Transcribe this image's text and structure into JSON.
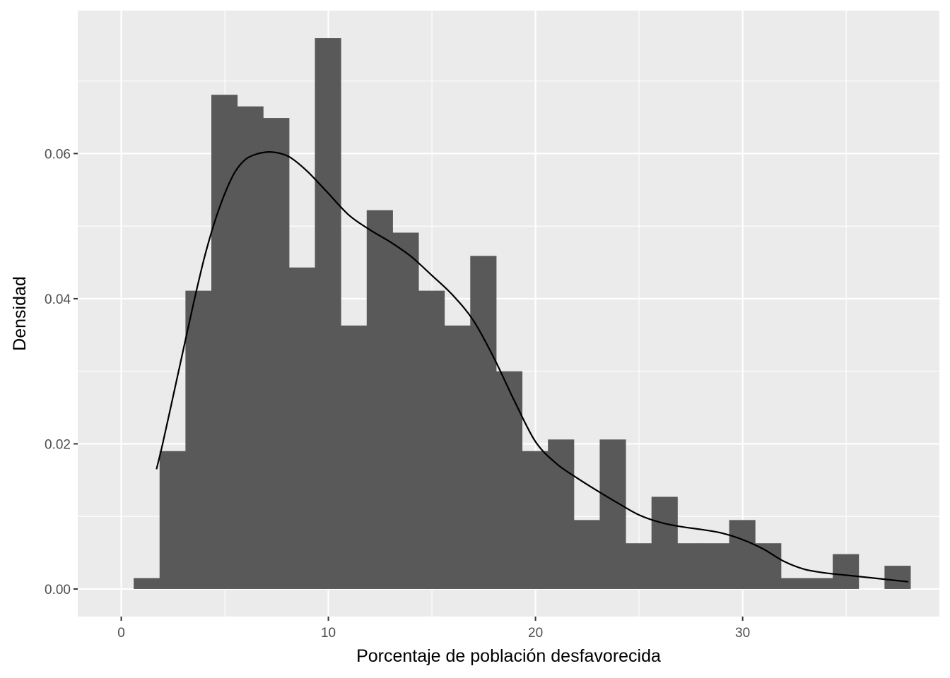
{
  "chart_data": {
    "type": "histogram",
    "xlabel": "Porcentaje de población desfavorecida",
    "ylabel": "Densidad",
    "xlim": [
      -2.1,
      39.5
    ],
    "ylim": [
      -0.0038,
      0.0797
    ],
    "x_ticks": [
      0,
      10,
      20,
      30
    ],
    "x_tick_labels": [
      "0",
      "10",
      "20",
      "30"
    ],
    "y_ticks": [
      0,
      0.02,
      0.04,
      0.06
    ],
    "y_tick_labels": [
      "0.00",
      "0.02",
      "0.04",
      "0.06"
    ],
    "grid": true,
    "legend": "none",
    "bins": {
      "start": 0.6,
      "width": 1.25,
      "densities": [
        0.0015,
        0.019,
        0.0411,
        0.0681,
        0.0665,
        0.0649,
        0.0443,
        0.0759,
        0.0363,
        0.0522,
        0.0491,
        0.0411,
        0.0363,
        0.0459,
        0.03,
        0.019,
        0.0206,
        0.0095,
        0.0206,
        0.0063,
        0.0127,
        0.0063,
        0.0063,
        0.0095,
        0.0063,
        0.0015,
        0.0015,
        0.0048,
        0.0,
        0.0032
      ]
    },
    "density_curve": {
      "x": [
        1.7,
        2.0,
        2.5,
        3.0,
        3.5,
        4.0,
        4.5,
        5.0,
        5.5,
        6.0,
        6.5,
        7.0,
        7.3,
        7.7,
        8.2,
        9.0,
        10.0,
        11.0,
        12.0,
        13.0,
        14.0,
        15.0,
        16.0,
        17.0,
        18.0,
        19.0,
        20.0,
        21.0,
        22.0,
        23.0,
        24.0,
        25.0,
        26.0,
        27.0,
        28.0,
        29.0,
        30.0,
        31.0,
        32.0,
        33.0,
        34.0,
        35.0,
        36.0,
        37.0,
        38.0
      ],
      "y": [
        0.0165,
        0.02,
        0.0265,
        0.033,
        0.0395,
        0.0455,
        0.0505,
        0.0545,
        0.0575,
        0.0592,
        0.0599,
        0.0602,
        0.0602,
        0.06,
        0.0594,
        0.0575,
        0.0545,
        0.0515,
        0.0495,
        0.0478,
        0.0458,
        0.0432,
        0.0405,
        0.037,
        0.0318,
        0.0258,
        0.0203,
        0.0173,
        0.0153,
        0.0135,
        0.0118,
        0.0102,
        0.0092,
        0.0086,
        0.0082,
        0.0077,
        0.0068,
        0.0055,
        0.0038,
        0.0027,
        0.0022,
        0.0019,
        0.0016,
        0.0013,
        0.001
      ]
    },
    "colors": {
      "panel_background": "#ebebeb",
      "grid": "#ffffff",
      "bar_fill": "#595959",
      "curve": "#000000",
      "tick_label": "#4d4d4d",
      "axis_title": "#000000"
    }
  }
}
